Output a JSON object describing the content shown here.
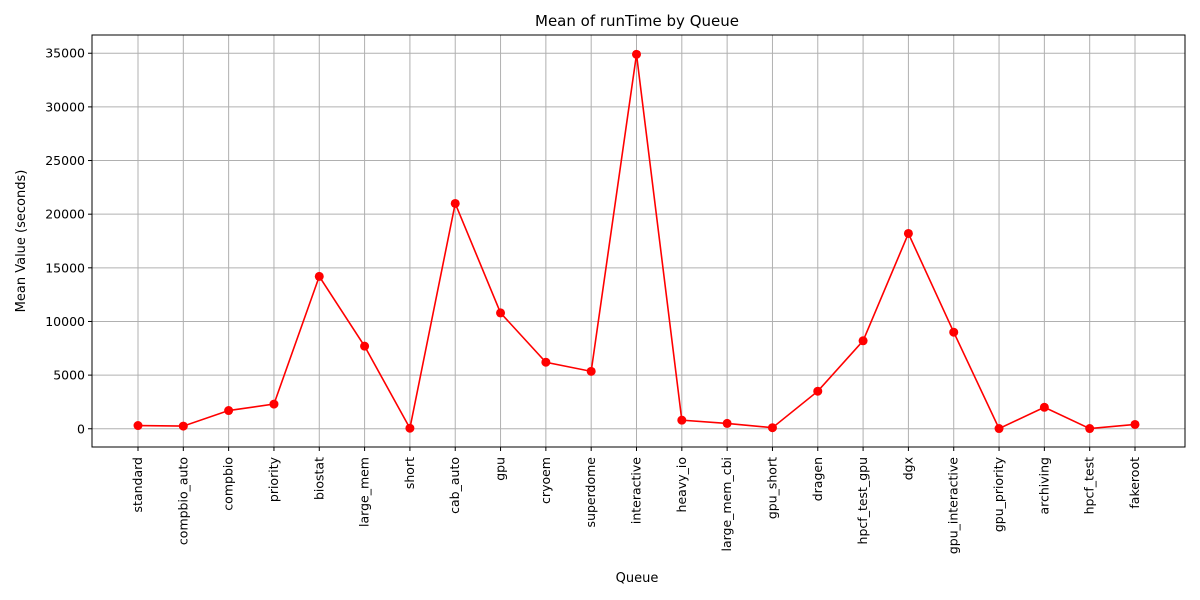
{
  "chart_data": {
    "type": "line",
    "title": "Mean of runTime by Queue",
    "xlabel": "Queue",
    "ylabel": "Mean Value (seconds)",
    "categories": [
      "standard",
      "compbio_auto",
      "compbio",
      "priority",
      "biostat",
      "large_mem",
      "short",
      "cab_auto",
      "gpu",
      "cryoem",
      "superdome",
      "interactive",
      "heavy_io",
      "large_mem_cbi",
      "gpu_short",
      "dragen",
      "hpcf_test_gpu",
      "dgx",
      "gpu_interactive",
      "gpu_priority",
      "archiving",
      "hpcf_test",
      "fakeroot"
    ],
    "values": [
      300,
      250,
      1700,
      2300,
      14200,
      7700,
      50,
      21000,
      10800,
      6200,
      5350,
      34900,
      800,
      500,
      100,
      3500,
      8200,
      18200,
      9000,
      20,
      2000,
      20,
      400
    ],
    "ylim": [
      -1700,
      36700
    ],
    "yticks": [
      0,
      5000,
      10000,
      15000,
      20000,
      25000,
      30000,
      35000
    ],
    "grid": true,
    "line_color": "#ff0000",
    "marker_color": "#ff0000",
    "grid_color": "#b0b0b0"
  }
}
